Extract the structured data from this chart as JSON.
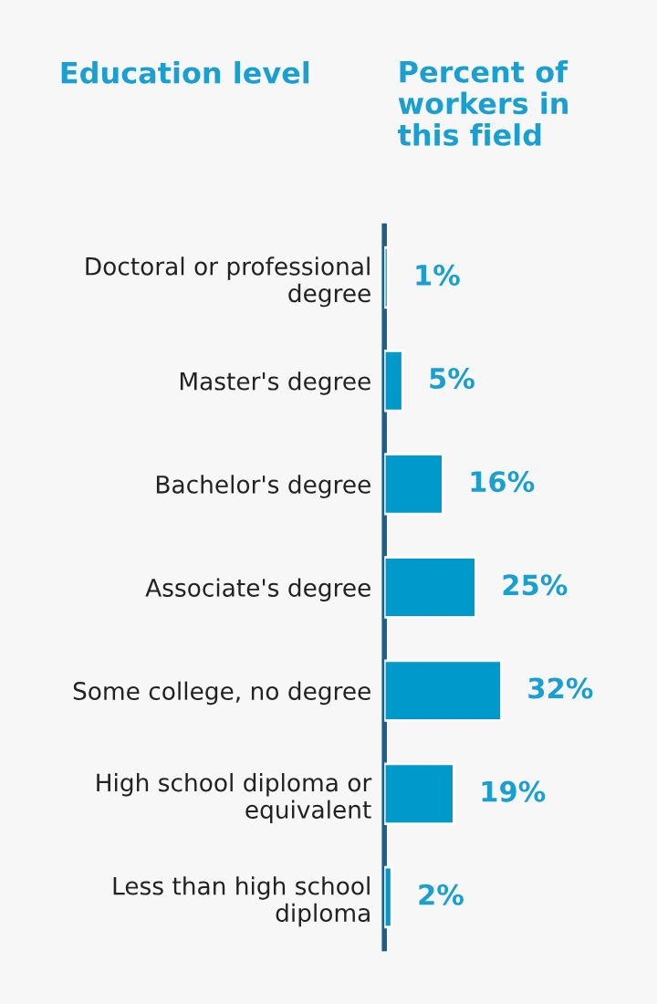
{
  "chart_data": {
    "type": "bar",
    "orientation": "horizontal",
    "ylabel": "Education level",
    "xlabel": "Percent of\nworkers in\nthis field",
    "categories": [
      "Doctoral or professional\ndegree",
      "Master's degree",
      "Bachelor's degree",
      "Associate's degree",
      "Some college, no degree",
      "High school diploma or\nequivalent",
      "Less than high school\ndiploma"
    ],
    "values": [
      1,
      5,
      16,
      25,
      32,
      19,
      2
    ],
    "value_labels": [
      "1%",
      "5%",
      "16%",
      "25%",
      "32%",
      "19%",
      "2%"
    ],
    "color": "#0099cc",
    "grid": false,
    "legend": false,
    "tick_labels": "y"
  }
}
